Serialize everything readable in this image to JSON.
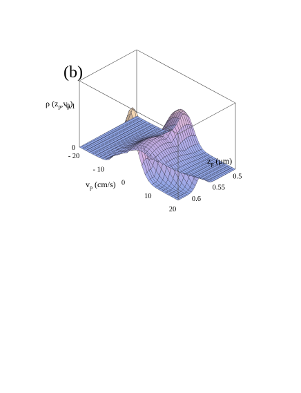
{
  "panel_label": "(b)",
  "chart_data": {
    "type": "surface",
    "title": "",
    "zlabel": {
      "main": "ρ (z",
      "sub1": "p",
      "mid": ",v",
      "sub2": "p",
      "end": ")"
    },
    "xlabel": {
      "main": "v",
      "sub": "p",
      "end": " (cm/s)"
    },
    "ylabel": {
      "main": "z",
      "sub": "p",
      "end": " (μm)"
    },
    "x_ticks": [
      "- 20",
      "- 10",
      "0",
      "10",
      "20"
    ],
    "y_ticks": [
      "0.5",
      "0.55",
      "0.6"
    ],
    "z_ticks": [
      "0",
      "0.1"
    ],
    "xlim": [
      -20,
      20
    ],
    "ylim": [
      0.47,
      0.61
    ],
    "zlim": [
      0,
      0.16
    ],
    "grid_count": 30,
    "peaks": [
      {
        "z_position": 0.6,
        "v_position": 0,
        "height": 0.155,
        "v_width": 3.5,
        "z_width": 0.013
      },
      {
        "z_position": 0.49,
        "v_position": 0,
        "height": 0.09,
        "v_width": 3.0,
        "z_width": 0.03
      }
    ],
    "ridge": {
      "v_start": 0,
      "v_end": 19,
      "z_start": 0.595,
      "z_end": 0.555,
      "height": 0.055,
      "v_width": 3.5,
      "z_width": 0.01
    },
    "colors": {
      "low": "#8ea4e4",
      "mid": "#c8a6d6",
      "high": "#f4d6b2",
      "mesh": "#2a2a3a"
    }
  }
}
